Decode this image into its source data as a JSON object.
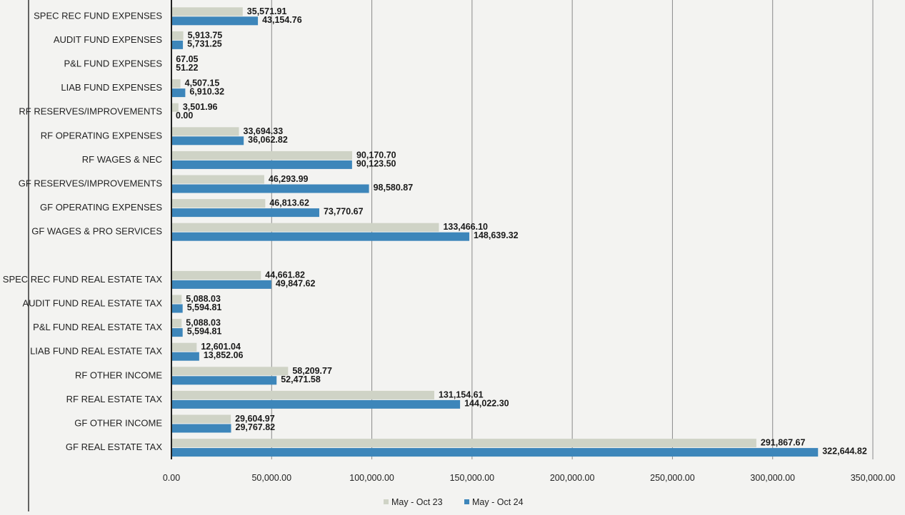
{
  "chart_data": {
    "type": "bar",
    "orientation": "horizontal",
    "categories": [
      "SPEC REC FUND EXPENSES",
      "AUDIT FUND EXPENSES",
      "P&L FUND EXPENSES",
      "LIAB FUND EXPENSES",
      "RF RESERVES/IMPROVEMENTS",
      "RF OPERATING EXPENSES",
      "RF WAGES & NEC",
      "GF RESERVES/IMPROVEMENTS",
      "GF OPERATING EXPENSES",
      "GF WAGES & PRO SERVICES",
      "",
      "SPEC REC FUND REAL ESTATE TAX",
      "AUDIT FUND REAL ESTATE TAX",
      "P&L FUND REAL ESTATE TAX",
      "LIAB FUND REAL ESTATE TAX",
      "RF OTHER INCOME",
      "RF REAL ESTATE TAX",
      "GF OTHER INCOME",
      "GF REAL ESTATE TAX"
    ],
    "series": [
      {
        "name": "May - Oct 23",
        "color": "#cfd3c6",
        "values": [
          35571.91,
          5913.75,
          67.05,
          4507.15,
          3501.96,
          33694.33,
          90170.7,
          46293.99,
          46813.62,
          133466.1,
          null,
          44661.82,
          5088.03,
          5088.03,
          12601.04,
          58209.77,
          131154.61,
          29604.97,
          291867.67
        ],
        "labels": [
          "35,571.91",
          "5,913.75",
          "67.05",
          "4,507.15",
          "3,501.96",
          "33,694.33",
          "90,170.70",
          "46,293.99",
          "46,813.62",
          "133,466.10",
          "",
          "44,661.82",
          "5,088.03",
          "5,088.03",
          "12,601.04",
          "58,209.77",
          "131,154.61",
          "29,604.97",
          "291,867.67"
        ]
      },
      {
        "name": "May - Oct 24",
        "color": "#3d86ba",
        "values": [
          43154.76,
          5731.25,
          51.22,
          6910.32,
          0.0,
          36062.82,
          90123.5,
          98580.87,
          73770.67,
          148639.32,
          null,
          49847.62,
          5594.81,
          5594.81,
          13852.06,
          52471.58,
          144022.3,
          29767.82,
          322644.82
        ],
        "labels": [
          "43,154.76",
          "5,731.25",
          "51.22",
          "6,910.32",
          "0.00",
          "36,062.82",
          "90,123.50",
          "98,580.87",
          "73,770.67",
          "148,639.32",
          "",
          "49,847.62",
          "5,594.81",
          "5,594.81",
          "13,852.06",
          "52,471.58",
          "144,022.30",
          "29,767.82",
          "322,644.82"
        ]
      }
    ],
    "xlim": [
      0,
      350000
    ],
    "xticks": [
      0,
      50000,
      100000,
      150000,
      200000,
      250000,
      300000,
      350000
    ],
    "xtick_labels": [
      "0.00",
      "50,000.00",
      "100,000.00",
      "150,000.00",
      "200,000.00",
      "250,000.00",
      "300,000.00",
      "350,000.00"
    ],
    "grid": "vertical",
    "legend": "bottom-center",
    "title": "",
    "xlabel": "",
    "ylabel": ""
  }
}
